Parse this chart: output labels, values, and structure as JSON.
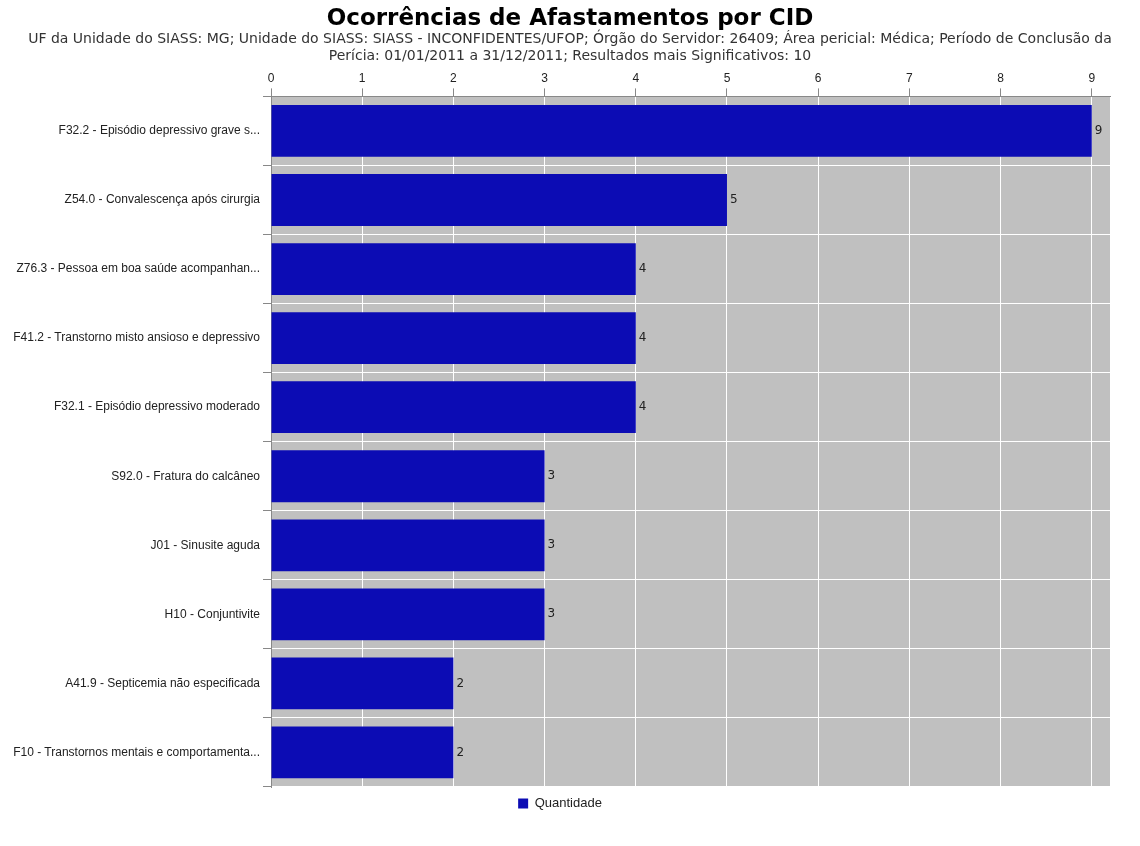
{
  "chart_data": {
    "type": "bar",
    "orientation": "horizontal",
    "title": "Ocorrências de Afastamentos por CID",
    "subtitle": "UF da Unidade do SIASS: MG; Unidade do SIASS: SIASS - INCONFIDENTES/UFOP; Órgão do Servidor: 26409; Área pericial: Médica; Período de Conclusão da Perícia: 01/01/2011 a 31/12/2011; Resultados mais Significativos: 10",
    "categories": [
      "F32.2 - Episódio depressivo grave s...",
      "Z54.0 - Convalescença após cirurgia",
      "Z76.3 - Pessoa em boa saúde acompanhan...",
      "F41.2 - Transtorno misto ansioso e depressivo",
      "F32.1 - Episódio depressivo moderado",
      "S92.0 - Fratura do calcâneo",
      "J01 - Sinusite aguda",
      "H10 - Conjuntivite",
      "A41.9 - Septicemia não especificada",
      "F10 - Transtornos mentais e comportamenta..."
    ],
    "series": [
      {
        "name": "Quantidade",
        "color": "#0c0cb4",
        "values": [
          9,
          5,
          4,
          4,
          4,
          3,
          3,
          3,
          2,
          2
        ]
      }
    ],
    "xlim": [
      0,
      9.2
    ],
    "xticks": [
      0,
      1,
      2,
      3,
      4,
      5,
      6,
      7,
      8,
      9
    ],
    "grid": true,
    "legend": "bottom",
    "data_labels": true
  }
}
